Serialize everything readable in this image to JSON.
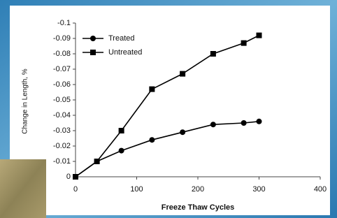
{
  "chart_data": {
    "type": "line",
    "x_label": "Freeze Thaw Cycles",
    "y_label": "Change in Length, %",
    "x": [
      0,
      35,
      75,
      125,
      175,
      225,
      275,
      300
    ],
    "series": [
      {
        "name": "Treated",
        "color": "#000000",
        "marker": "circle",
        "values": [
          0,
          -0.01,
          -0.017,
          -0.024,
          -0.029,
          -0.034,
          -0.035,
          -0.036
        ]
      },
      {
        "name": "Untreated",
        "color": "#000000",
        "marker": "square",
        "values": [
          0,
          -0.01,
          -0.03,
          -0.057,
          -0.067,
          -0.08,
          -0.087,
          -0.092
        ]
      }
    ],
    "xlim": [
      0,
      400
    ],
    "xticks": [
      0,
      100,
      200,
      300,
      400
    ],
    "ylim": [
      0,
      -0.1
    ],
    "yticks": [
      0,
      -0.01,
      -0.02,
      -0.03,
      -0.04,
      -0.05,
      -0.06,
      -0.07,
      -0.08,
      -0.09,
      -0.1
    ],
    "legend": "top-left"
  }
}
